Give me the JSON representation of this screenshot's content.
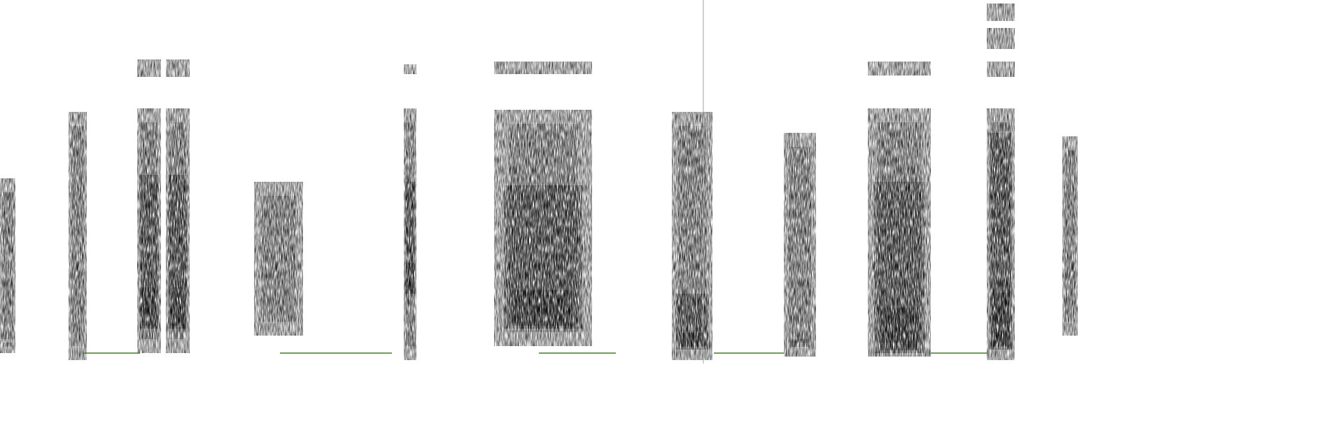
{
  "palette": {
    "background": "#ffffff",
    "low": "#2e7d12",
    "mid": "#7fb62a",
    "high": "#f2e21a",
    "peak": "#f07a1c",
    "max": "#e8401a"
  },
  "segments": [
    {
      "id": "seg-01",
      "intensity": "medium",
      "bands": [
        "low",
        "mid"
      ]
    },
    {
      "id": "seg-02",
      "intensity": "low",
      "bands": [
        "low",
        "mid"
      ]
    },
    {
      "id": "seg-03",
      "intensity": "high",
      "bands": [
        "low",
        "mid",
        "high"
      ]
    },
    {
      "id": "seg-04",
      "intensity": "high",
      "bands": [
        "low",
        "mid",
        "high"
      ]
    },
    {
      "id": "seg-05",
      "intensity": "low",
      "bands": [
        "low",
        "mid"
      ]
    },
    {
      "id": "seg-06",
      "intensity": "medium",
      "bands": [
        "low",
        "mid",
        "high"
      ]
    },
    {
      "id": "seg-07",
      "intensity": "high",
      "bands": [
        "low",
        "mid",
        "high"
      ]
    },
    {
      "id": "seg-08",
      "intensity": "high",
      "bands": [
        "low",
        "mid",
        "high"
      ]
    },
    {
      "id": "seg-09",
      "intensity": "medium",
      "bands": [
        "low",
        "mid"
      ]
    },
    {
      "id": "seg-10",
      "intensity": "high",
      "bands": [
        "low",
        "mid",
        "high"
      ]
    },
    {
      "id": "seg-11",
      "intensity": "high",
      "bands": [
        "low",
        "mid",
        "high"
      ]
    },
    {
      "id": "seg-12",
      "intensity": "low",
      "bands": [
        "low",
        "mid"
      ]
    }
  ]
}
